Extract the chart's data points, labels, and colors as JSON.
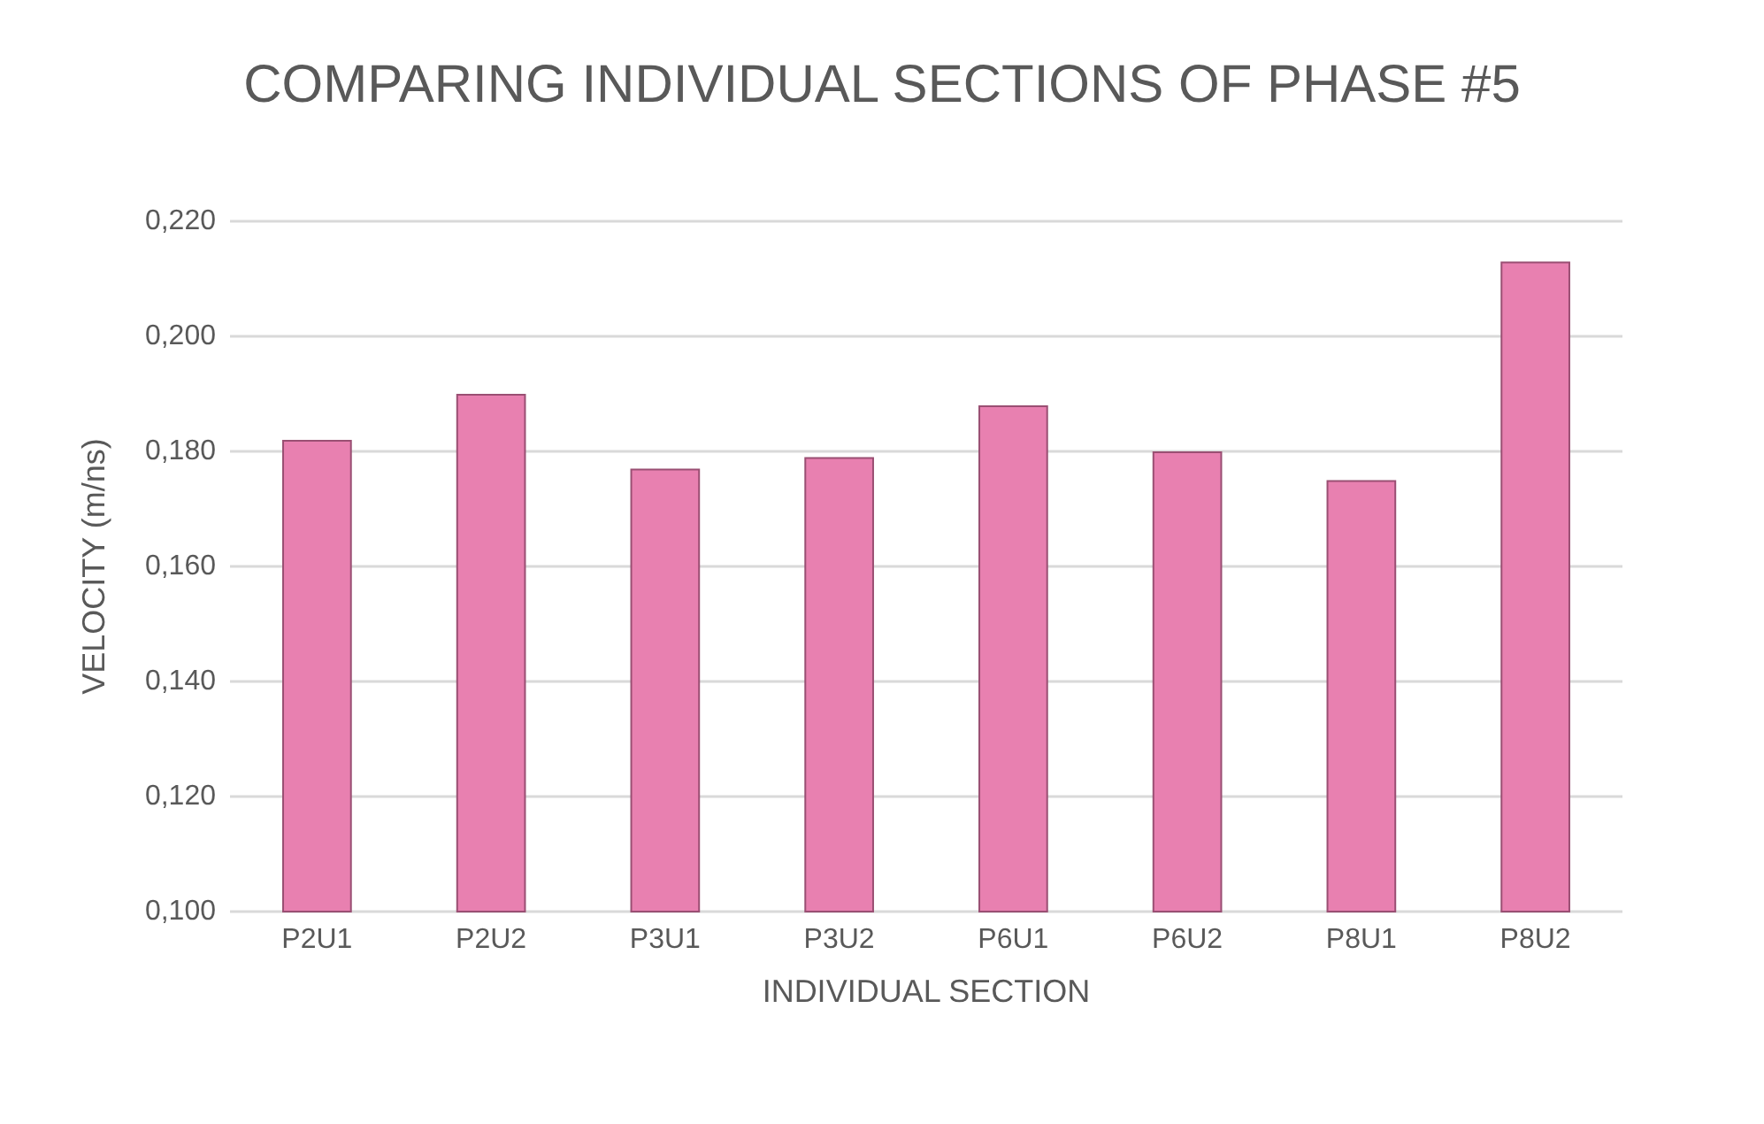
{
  "chart_data": {
    "type": "bar",
    "title": "COMPARING INDIVIDUAL SECTIONS OF PHASE #5",
    "xlabel": "INDIVIDUAL SECTION",
    "ylabel": "VELOCITY (m/ns)",
    "categories": [
      "P2U1",
      "P2U2",
      "P3U1",
      "P3U2",
      "P6U1",
      "P6U2",
      "P8U1",
      "P8U2"
    ],
    "values": [
      0.182,
      0.19,
      0.177,
      0.179,
      0.188,
      0.18,
      0.175,
      0.213
    ],
    "color": "#e880b0",
    "ylim": [
      0.1,
      0.22
    ],
    "yticks": [
      {
        "value": 0.1,
        "label": "0,100"
      },
      {
        "value": 0.12,
        "label": "0,120"
      },
      {
        "value": 0.14,
        "label": "0,140"
      },
      {
        "value": 0.16,
        "label": "0,160"
      },
      {
        "value": 0.18,
        "label": "0,180"
      },
      {
        "value": 0.2,
        "label": "0,200"
      },
      {
        "value": 0.22,
        "label": "0,220"
      }
    ],
    "grid": "y"
  }
}
